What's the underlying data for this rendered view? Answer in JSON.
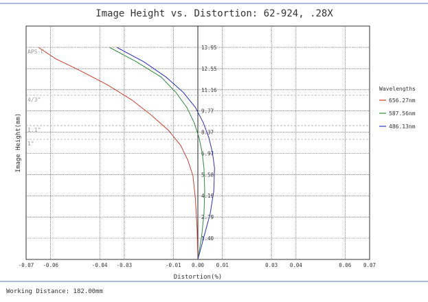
{
  "chart_data": {
    "type": "line",
    "title": "Image Height vs. Distortion: 62-924, .28X",
    "xlabel": "Distortion(%)",
    "ylabel": "Image Height(mm)",
    "xlim": [
      -0.07,
      0.07
    ],
    "ylim": [
      0,
      15.35
    ],
    "x_ticks": [
      -0.07,
      -0.06,
      -0.04,
      -0.03,
      -0.01,
      0.0,
      0.01,
      0.03,
      0.04,
      0.06,
      0.07
    ],
    "x_tick_labels": [
      "-0.07",
      "-0.06",
      "-0.04",
      "-0.03",
      "-0.01",
      "0.00",
      "0.01",
      "0.03",
      "0.04",
      "0.06",
      "0.07"
    ],
    "y_ticks": [
      1.4,
      2.79,
      4.19,
      5.58,
      6.97,
      8.37,
      9.77,
      11.16,
      12.55,
      13.95
    ],
    "y_tick_labels": [
      "1.40",
      "2.79",
      "4.19",
      "5.58",
      "6.97",
      "8.37",
      "9.77",
      "11.16",
      "12.55",
      "13.95"
    ],
    "sensor_lines": [
      {
        "label": "APS-C",
        "y": 13.95
      },
      {
        "label": "4/3\"",
        "y": 10.8
      },
      {
        "label": "1.1\"",
        "y": 8.8
      },
      {
        "label": "1\"",
        "y": 7.9
      }
    ],
    "legend_title": "Wavelengths",
    "legend_position": "right",
    "grid": true,
    "series": [
      {
        "name": "656.27nm",
        "color": "#d33a2f",
        "x": [
          0.0,
          -0.0003,
          -0.001,
          -0.002,
          -0.004,
          -0.007,
          -0.012,
          -0.019,
          -0.027,
          -0.037,
          -0.049,
          -0.058,
          -0.065
        ],
        "y": [
          0.0,
          2.0,
          4.0,
          5.5,
          6.5,
          7.5,
          8.5,
          9.5,
          10.5,
          11.5,
          12.5,
          13.2,
          13.95
        ]
      },
      {
        "name": "587.56nm",
        "color": "#2e8b3d",
        "x": [
          0.0,
          0.0015,
          0.0025,
          0.0028,
          0.0025,
          0.0018,
          0.0005,
          -0.0015,
          -0.0045,
          -0.009,
          -0.015,
          -0.025,
          -0.036
        ],
        "y": [
          0.0,
          1.5,
          3.0,
          4.5,
          6.0,
          7.0,
          8.0,
          9.0,
          10.0,
          11.0,
          12.0,
          13.0,
          13.95
        ]
      },
      {
        "name": "486.13nm",
        "color": "#2a2fc4",
        "x": [
          0.0,
          0.0025,
          0.005,
          0.0065,
          0.0068,
          0.006,
          0.0045,
          0.0022,
          -0.001,
          -0.006,
          -0.013,
          -0.022,
          -0.033
        ],
        "y": [
          0.0,
          1.5,
          3.0,
          4.5,
          6.0,
          7.0,
          8.0,
          9.0,
          10.0,
          11.0,
          12.0,
          13.0,
          13.95
        ]
      }
    ]
  },
  "footer": {
    "working_distance": "Working Distance: 182.00mm"
  },
  "colors": {
    "grid": "#333333",
    "sensor_line": "#aaaaaa",
    "frame": "#5a6fc7"
  }
}
